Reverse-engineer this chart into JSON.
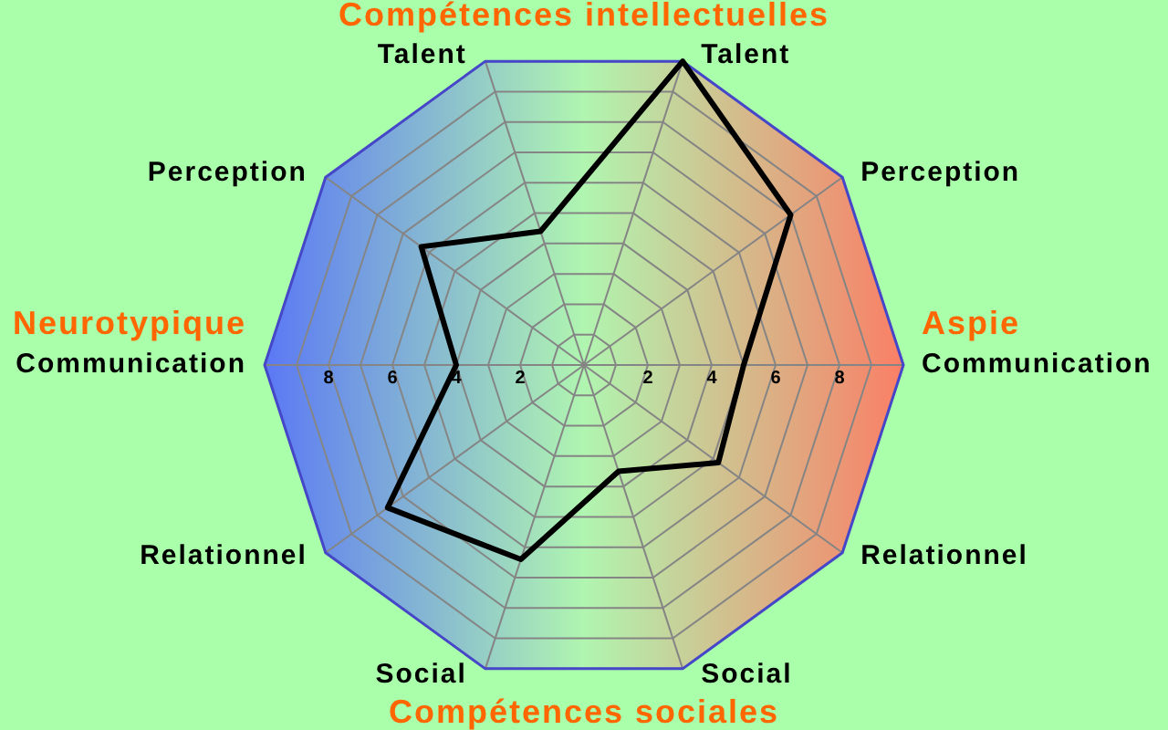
{
  "chart_data": {
    "type": "radar",
    "categories": [
      "Talent",
      "Perception",
      "Communication",
      "Relationnel",
      "Social",
      "Social",
      "Relationnel",
      "Communication",
      "Perception",
      "Talent"
    ],
    "series": [
      {
        "color": "#000000",
        "values": [
          10,
          8,
          5,
          5.2,
          3.5,
          6.4,
          7.6,
          4,
          6.3,
          4.4
        ]
      }
    ],
    "ylim": [
      0,
      10
    ],
    "yticks": [
      2,
      4,
      6,
      8,
      2,
      4,
      6,
      8
    ],
    "grid": true,
    "marker": "none",
    "annotations": [
      "Compétences intellectuelles",
      "Compétences sociales",
      "Neurotypique",
      "Aspie"
    ]
  }
}
